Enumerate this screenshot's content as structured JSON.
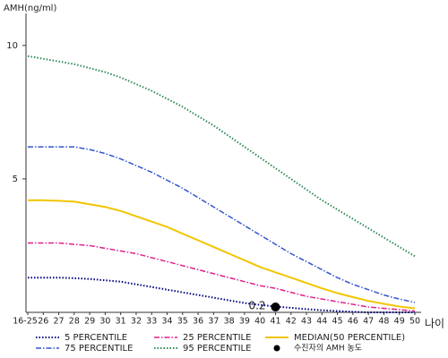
{
  "chart_data": {
    "type": "line",
    "y_label": "AMH(ng/ml)",
    "x_label": "나이",
    "categories": [
      "16-25",
      "26",
      "27",
      "28",
      "29",
      "30",
      "31",
      "32",
      "33",
      "34",
      "35",
      "36",
      "37",
      "38",
      "39",
      "40",
      "41",
      "42",
      "43",
      "44",
      "45",
      "46",
      "47",
      "48",
      "49",
      "50"
    ],
    "ylim": [
      0,
      11.2
    ],
    "yticks": [
      5,
      10
    ],
    "series": [
      {
        "name": "5 PERCENTILE",
        "color": "#000080",
        "style": "dotted",
        "values": [
          1.3,
          1.3,
          1.3,
          1.28,
          1.25,
          1.2,
          1.15,
          1.05,
          0.95,
          0.85,
          0.75,
          0.65,
          0.55,
          0.45,
          0.35,
          0.28,
          0.22,
          0.17,
          0.12,
          0.08,
          0.05,
          0.02,
          0,
          0,
          0,
          0
        ]
      },
      {
        "name": "25 PERCENTILE",
        "color": "#e0208a",
        "style": "dashdot",
        "values": [
          2.6,
          2.6,
          2.6,
          2.55,
          2.5,
          2.4,
          2.3,
          2.2,
          2.05,
          1.9,
          1.75,
          1.6,
          1.45,
          1.3,
          1.15,
          1.0,
          0.9,
          0.75,
          0.6,
          0.5,
          0.4,
          0.3,
          0.2,
          0.15,
          0.1,
          0.05
        ]
      },
      {
        "name": "MEDIAN(50 PERCENTILE)",
        "color": "#f2c500",
        "style": "solid",
        "values": [
          4.2,
          4.2,
          4.18,
          4.15,
          4.05,
          3.95,
          3.8,
          3.6,
          3.4,
          3.2,
          2.95,
          2.7,
          2.45,
          2.2,
          1.95,
          1.7,
          1.5,
          1.3,
          1.1,
          0.9,
          0.72,
          0.57,
          0.43,
          0.32,
          0.22,
          0.15
        ]
      },
      {
        "name": "75 PERCENTILE",
        "color": "#3355cc",
        "style": "dashdot",
        "values": [
          6.2,
          6.2,
          6.2,
          6.2,
          6.1,
          5.95,
          5.75,
          5.5,
          5.25,
          4.95,
          4.65,
          4.3,
          3.95,
          3.6,
          3.25,
          2.9,
          2.55,
          2.2,
          1.9,
          1.6,
          1.3,
          1.05,
          0.85,
          0.65,
          0.5,
          0.37
        ]
      },
      {
        "name": "95 PERCENTILE",
        "color": "#2e8b57",
        "style": "dotted",
        "values": [
          9.6,
          9.5,
          9.4,
          9.3,
          9.15,
          9.0,
          8.8,
          8.55,
          8.3,
          8.0,
          7.7,
          7.35,
          7.0,
          6.6,
          6.2,
          5.8,
          5.4,
          5.0,
          4.6,
          4.2,
          3.85,
          3.5,
          3.15,
          2.8,
          2.45,
          2.1
        ]
      }
    ],
    "patient": {
      "name": "수진자의 AMH 농도",
      "x": "41",
      "value": 0.2,
      "color": "#000000"
    }
  }
}
